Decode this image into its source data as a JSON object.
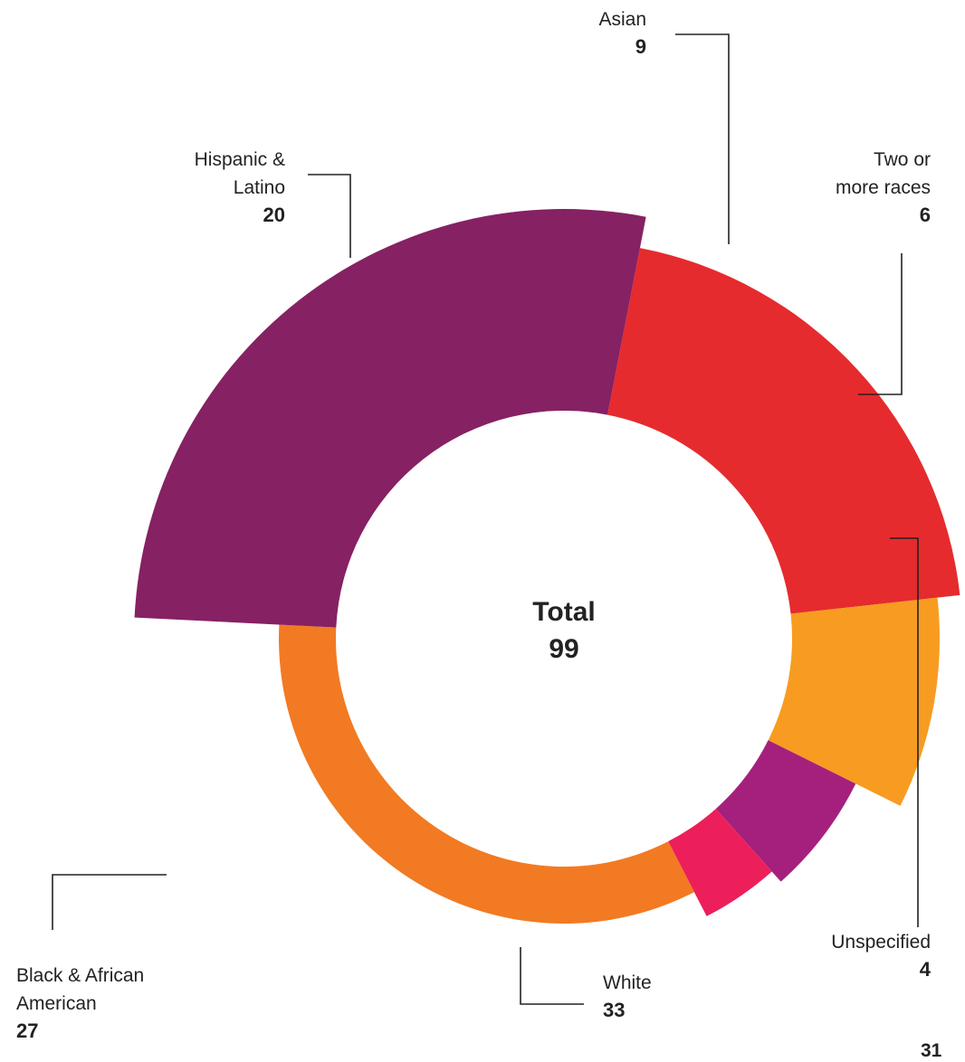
{
  "center": {
    "title": "Total",
    "value": "99"
  },
  "page_number": "31",
  "colors": {
    "Hispanic & Latino": "#e52b2d",
    "Asian": "#f79c21",
    "Two or more races": "#a5207c",
    "Unspecified": "#ec1f5a",
    "White": "#f27a22",
    "Black & African American": "#862163"
  },
  "chart_data": {
    "type": "pie",
    "variant": "donut with variable outer radius (radius scaled by value)",
    "total": 99,
    "categories": [
      "Hispanic & Latino",
      "Asian",
      "Two or more races",
      "Unspecified",
      "White",
      "Black & African American"
    ],
    "values": [
      20,
      9,
      6,
      4,
      33,
      27
    ],
    "labels": [
      {
        "category": "Hispanic & Latino",
        "lines": [
          "Hispanic &",
          "Latino"
        ],
        "value": "20"
      },
      {
        "category": "Asian",
        "lines": [
          "Asian"
        ],
        "value": "9"
      },
      {
        "category": "Two or more races",
        "lines": [
          "Two or",
          "more races"
        ],
        "value": "6"
      },
      {
        "category": "Unspecified",
        "lines": [
          "Unspecified"
        ],
        "value": "4"
      },
      {
        "category": "White",
        "lines": [
          "White"
        ],
        "value": "33"
      },
      {
        "category": "Black & African American",
        "lines": [
          "Black & African",
          "American"
        ],
        "value": "27"
      }
    ]
  }
}
